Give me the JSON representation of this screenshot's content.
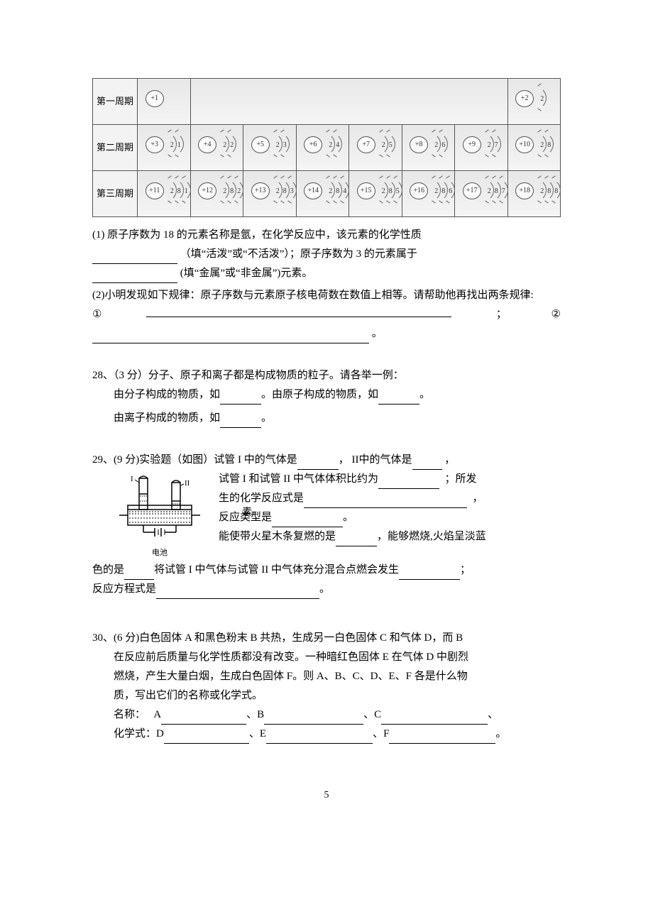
{
  "table": {
    "row_labels": [
      "第一周期",
      "第二周期",
      "第三周期"
    ],
    "rows": [
      [
        {
          "z": "+1",
          "shells": []
        },
        null,
        null,
        null,
        null,
        null,
        null,
        {
          "z": "+2",
          "shells": [
            "2"
          ]
        }
      ],
      [
        {
          "z": "+3",
          "shells": [
            "2",
            "1"
          ]
        },
        {
          "z": "+4",
          "shells": [
            "2",
            "2"
          ]
        },
        {
          "z": "+5",
          "shells": [
            "2",
            "3"
          ]
        },
        {
          "z": "+6",
          "shells": [
            "2",
            "4"
          ]
        },
        {
          "z": "+7",
          "shells": [
            "2",
            "5"
          ]
        },
        {
          "z": "+8",
          "shells": [
            "2",
            "6"
          ]
        },
        {
          "z": "+9",
          "shells": [
            "2",
            "7"
          ]
        },
        {
          "z": "+10",
          "shells": [
            "2",
            "8"
          ]
        }
      ],
      [
        {
          "z": "+11",
          "shells": [
            "2",
            "8",
            "1"
          ]
        },
        {
          "z": "+12",
          "shells": [
            "2",
            "8",
            "2"
          ]
        },
        {
          "z": "+13",
          "shells": [
            "2",
            "8",
            "3"
          ]
        },
        {
          "z": "+14",
          "shells": [
            "2",
            "8",
            "4"
          ]
        },
        {
          "z": "+15",
          "shells": [
            "2",
            "8",
            "5"
          ]
        },
        {
          "z": "+16",
          "shells": [
            "2",
            "8",
            "6"
          ]
        },
        {
          "z": "+17",
          "shells": [
            "2",
            "8",
            "7"
          ]
        },
        {
          "z": "+18",
          "shells": [
            "2",
            "8",
            "8"
          ]
        }
      ]
    ]
  },
  "q27": {
    "p1a": "(1) 原子序数为 18 的元素名称是氩，在化学反应中，该元素的化学性质",
    "p1b": "（填“活泼”或“不活泼”）；原子序数为 3 的元素属于",
    "p1c": "(填“金属”或“非金属”)元素。",
    "p2a": "(2)小明发现如下规律：原子序数与元素原子核电荷数在数值上相等。请帮助他再找出两条规律:",
    "circled1": "①",
    "circled2": "②",
    "semi": "；",
    "period": "。"
  },
  "q28": {
    "head": "28、（3 分）分子、原子和离子都是构成物质的粒子。请各举一例：",
    "line1a": "由分子构成的物质，如",
    "line1b": "。由原子构成的物质，如",
    "line1c": "。",
    "line2a": "由离子构成的物质，如",
    "line2b": "。"
  },
  "q29": {
    "head": "29、(9 分)实验题（如图）试管 I 中的气体是",
    "head2": "， II中的气体是",
    "head3": "，",
    "l2a": "试管 I 和试管 II 中气体体积比约为",
    "l2b": "；所发",
    "l3a": "生的化学反应式是",
    "l3b": "，",
    "l4a": "反应类型是",
    "l4overlay": "素",
    "l4b": "。",
    "l5a": "能使带火星木条复燃的是",
    "l5b": "，能够燃烧,火焰呈淡蓝",
    "l6a": "色的是",
    "l6b": "将试管 I 中气体与试管 II 中气体充分混合点燃会发生",
    "l6c": "；",
    "l7a": "反应方程式是",
    "l7b": "。",
    "fig": {
      "I": "I",
      "II": "II",
      "battery": "电池"
    }
  },
  "q30": {
    "p1": "30、(6 分)白色固体 A 和黑色粉末 B 共热，生成另一白色固体 C 和气体 D，而 B",
    "p2": "在反应前后质量与化学性质都没有改变。一种暗红色固体 E 在气体 D 中剧烈",
    "p3": "燃烧，产生大量白烟，生成白色固体 F。则 A、B、C、D、E、F 各是什么物",
    "p4": "质，写出它们的名称或化学式。",
    "name_label": "名称：",
    "formula_label": "化学式：",
    "A": "A",
    "B": "B",
    "C": "C",
    "D": "D",
    "E": "E",
    "F": "F",
    "sep": "、",
    "end": "。"
  },
  "page_number": "5"
}
